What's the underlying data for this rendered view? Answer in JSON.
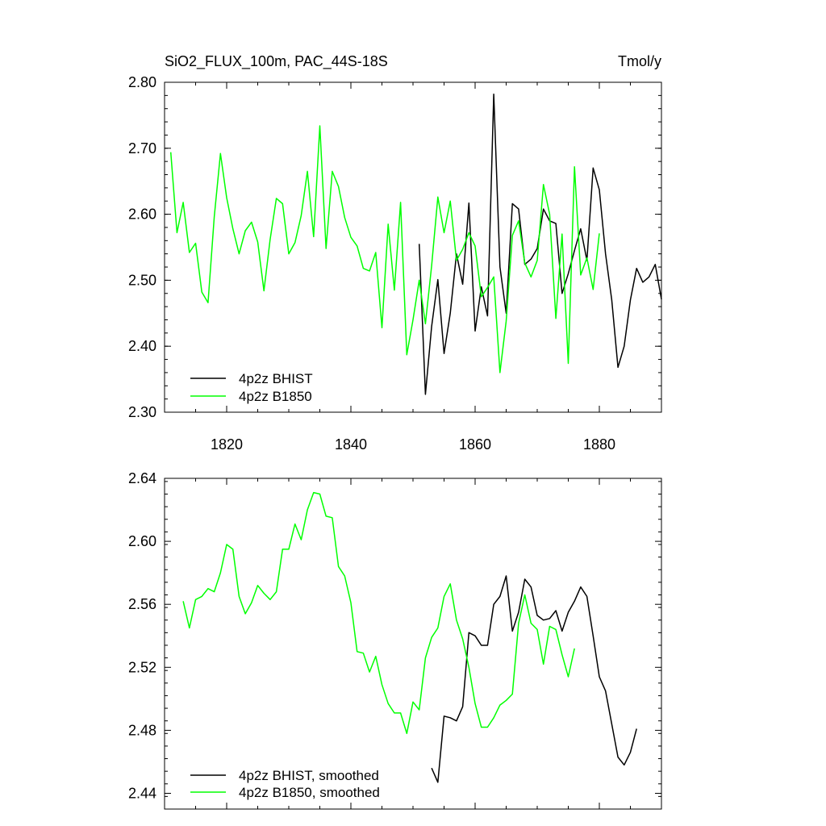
{
  "chart_data": [
    {
      "type": "line",
      "title": "SiO2_FLUX_100m, PAC_44S-18S",
      "units": "Tmol/y",
      "xlim": [
        1810,
        1890
      ],
      "ylim": [
        2.3,
        2.8
      ],
      "yticks": [
        "2.30",
        "2.40",
        "2.50",
        "2.60",
        "2.70",
        "2.80"
      ],
      "xticks": [
        "1820",
        "1840",
        "1860",
        "1880"
      ],
      "xtick_values": [
        1820,
        1840,
        1860,
        1880
      ],
      "ytick_values": [
        2.3,
        2.4,
        2.5,
        2.6,
        2.7,
        2.8
      ],
      "legend_location": "bottom-left",
      "series": [
        {
          "name": "4p2z BHIST",
          "color": "#000000",
          "x_start": 1851,
          "values": [
            2.555,
            2.327,
            2.43,
            2.501,
            2.389,
            2.45,
            2.54,
            2.494,
            2.617,
            2.423,
            2.49,
            2.446,
            2.782,
            2.52,
            2.45,
            2.616,
            2.608,
            2.524,
            2.532,
            2.548,
            2.608,
            2.59,
            2.586,
            2.48,
            2.51,
            2.545,
            2.578,
            2.53,
            2.67,
            2.637,
            2.54,
            2.47,
            2.368,
            2.4,
            2.47,
            2.518,
            2.497,
            2.505,
            2.524,
            2.471
          ]
        },
        {
          "name": "4p2z B1850",
          "color": "#00ff00",
          "x_start": 1811,
          "values": [
            2.694,
            2.572,
            2.618,
            2.542,
            2.556,
            2.482,
            2.466,
            2.596,
            2.692,
            2.625,
            2.578,
            2.54,
            2.575,
            2.588,
            2.558,
            2.484,
            2.562,
            2.624,
            2.616,
            2.54,
            2.557,
            2.598,
            2.665,
            2.566,
            2.734,
            2.548,
            2.665,
            2.642,
            2.595,
            2.565,
            2.552,
            2.518,
            2.514,
            2.542,
            2.428,
            2.585,
            2.485,
            2.618,
            2.387,
            2.44,
            2.5,
            2.434,
            2.522,
            2.626,
            2.572,
            2.62,
            2.53,
            2.547,
            2.572,
            2.552,
            2.475,
            2.489,
            2.505,
            2.36,
            2.438,
            2.568,
            2.59,
            2.526,
            2.505,
            2.53,
            2.645,
            2.6,
            2.442,
            2.57,
            2.374,
            2.672,
            2.508,
            2.534,
            2.486,
            2.571
          ]
        }
      ]
    },
    {
      "type": "line",
      "xlim": [
        1810,
        1890
      ],
      "ylim": [
        2.43,
        2.64
      ],
      "yticks": [
        "2.44",
        "2.48",
        "2.52",
        "2.56",
        "2.60",
        "2.64"
      ],
      "ytick_values": [
        2.44,
        2.48,
        2.52,
        2.56,
        2.6,
        2.64
      ],
      "xtick_values": [
        1820,
        1840,
        1860,
        1880
      ],
      "legend_location": "bottom-left",
      "series": [
        {
          "name": "4p2z BHIST, smoothed",
          "color": "#000000",
          "x_start": 1853,
          "values": [
            2.456,
            2.447,
            2.489,
            2.488,
            2.486,
            2.495,
            2.542,
            2.54,
            2.534,
            2.534,
            2.56,
            2.565,
            2.578,
            2.543,
            2.555,
            2.576,
            2.571,
            2.553,
            2.55,
            2.551,
            2.556,
            2.543,
            2.555,
            2.562,
            2.571,
            2.565,
            2.54,
            2.514,
            2.505,
            2.484,
            2.463,
            2.458,
            2.466,
            2.481
          ]
        },
        {
          "name": "4p2z B1850, smoothed",
          "color": "#00ff00",
          "x_start": 1813,
          "values": [
            2.562,
            2.545,
            2.563,
            2.565,
            2.57,
            2.568,
            2.58,
            2.598,
            2.595,
            2.565,
            2.554,
            2.561,
            2.572,
            2.567,
            2.563,
            2.568,
            2.595,
            2.595,
            2.611,
            2.601,
            2.62,
            2.631,
            2.63,
            2.616,
            2.615,
            2.584,
            2.578,
            2.561,
            2.53,
            2.529,
            2.517,
            2.527,
            2.509,
            2.497,
            2.491,
            2.491,
            2.478,
            2.498,
            2.493,
            2.526,
            2.539,
            2.545,
            2.565,
            2.573,
            2.55,
            2.538,
            2.52,
            2.497,
            2.482,
            2.482,
            2.488,
            2.496,
            2.499,
            2.503,
            2.548,
            2.566,
            2.548,
            2.544,
            2.522,
            2.546,
            2.544,
            2.528,
            2.514,
            2.532
          ]
        }
      ]
    }
  ]
}
